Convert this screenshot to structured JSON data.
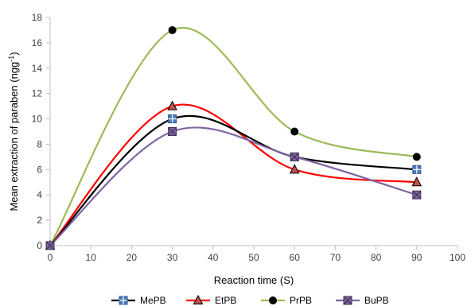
{
  "chart_data": {
    "type": "line",
    "title": "",
    "xlabel": "Reaction time (S)",
    "ylabel_main": "Mean extraction of paraben (ngg",
    "ylabel_sup": "-1",
    "ylabel_end": ")",
    "xlim": [
      0,
      100
    ],
    "ylim": [
      0,
      18
    ],
    "xticks": [
      0,
      10,
      20,
      30,
      40,
      50,
      60,
      70,
      80,
      90,
      100
    ],
    "yticks": [
      0,
      2,
      4,
      6,
      8,
      10,
      12,
      14,
      16,
      18
    ],
    "x": [
      0,
      30,
      60,
      90
    ],
    "smoothed": true,
    "grid": false,
    "legend_position": "bottom",
    "series": [
      {
        "name": "MePB",
        "values": [
          0,
          10,
          7,
          6
        ],
        "color": "#000000",
        "marker": "square-plus",
        "marker_color": "#4a7ebb"
      },
      {
        "name": "EtPB",
        "values": [
          0,
          11,
          6,
          5
        ],
        "color": "#ff0000",
        "marker": "triangle",
        "marker_color": "#c0504d"
      },
      {
        "name": "PrPB",
        "values": [
          0,
          17,
          9,
          7
        ],
        "color": "#9bbb59",
        "marker": "circle",
        "marker_color": "#000000"
      },
      {
        "name": "BuPB",
        "values": [
          0,
          9,
          7,
          4
        ],
        "color": "#8064a2",
        "marker": "square-x",
        "marker_color": "#8064a2"
      }
    ]
  }
}
